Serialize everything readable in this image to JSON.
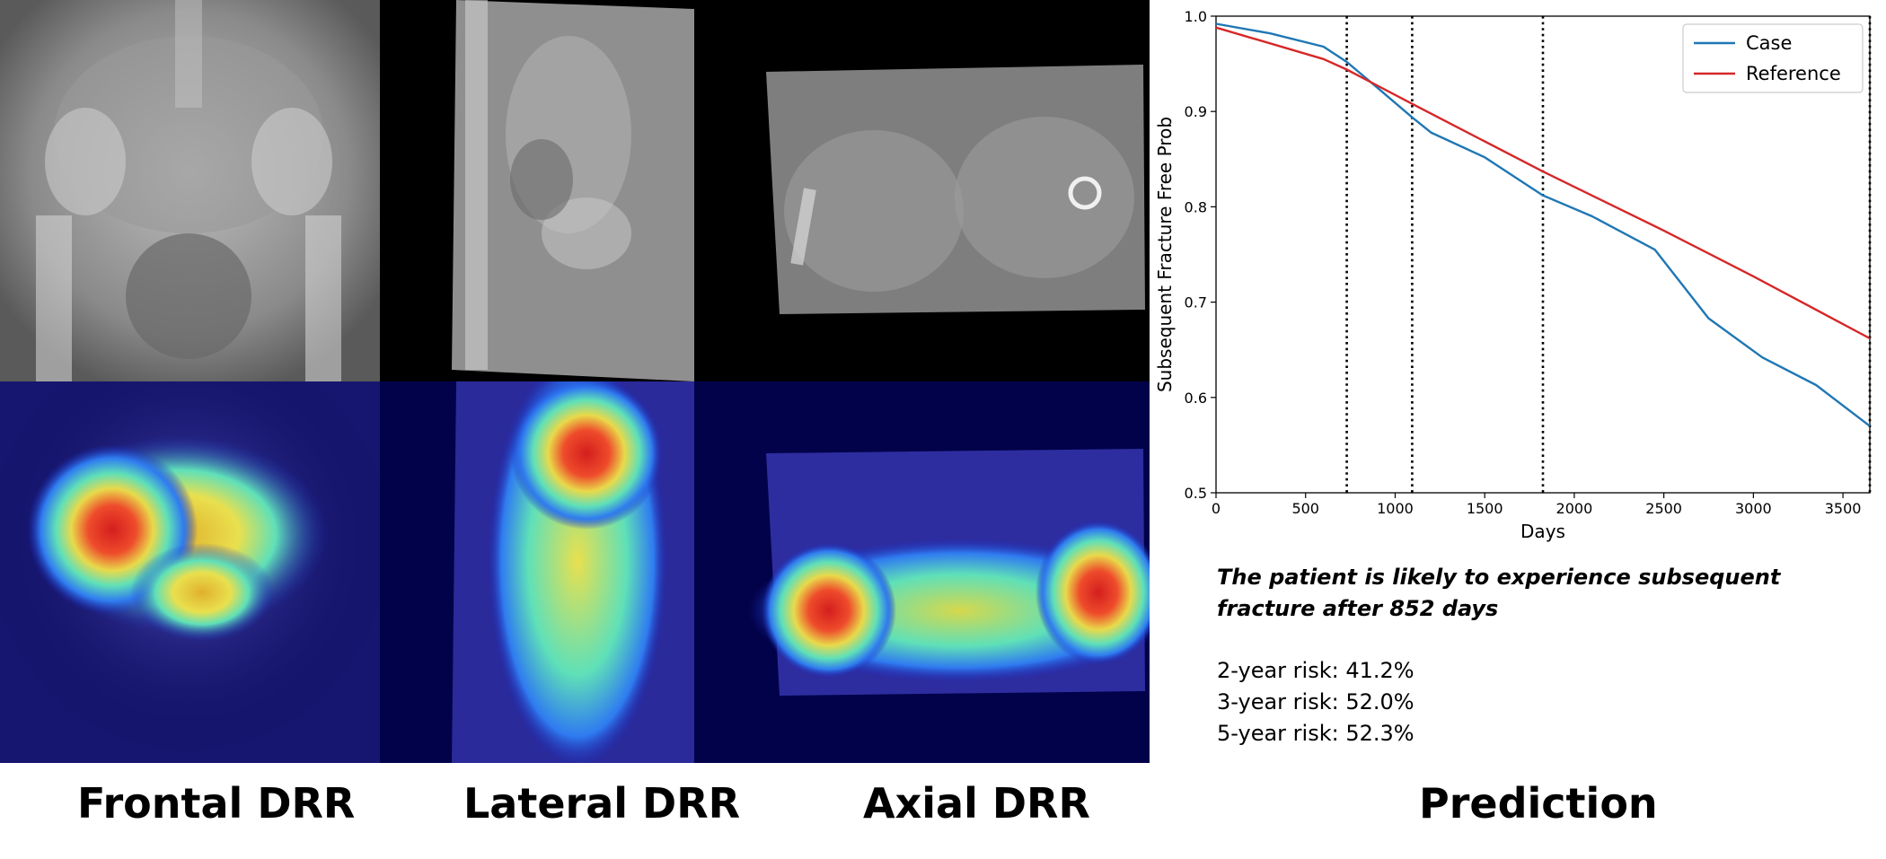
{
  "captions": {
    "frontal": "Frontal DRR",
    "lateral": "Lateral DRR",
    "axial": "Axial DRR",
    "prediction": "Prediction"
  },
  "prediction": {
    "statement": "The patient is likely to experience subsequent fracture after 852 days",
    "risks": [
      "2-year risk: 41.2%",
      "3-year risk: 52.0%",
      "5-year risk: 52.3%"
    ]
  },
  "colors": {
    "case": "#1f77b4",
    "reference": "#d62728",
    "heatmap_background": "#02024a"
  },
  "chart_data": {
    "type": "line",
    "title": "",
    "xlabel": "Days",
    "ylabel": "Subsequent Fracture Free Prob",
    "xlim": [
      0,
      3650
    ],
    "ylim": [
      0.5,
      1.0
    ],
    "xticks": [
      0,
      500,
      1000,
      1500,
      2000,
      2500,
      3000,
      3500
    ],
    "yticks": [
      0.5,
      0.6,
      0.7,
      0.8,
      0.9,
      1.0
    ],
    "legend_position": "top-right",
    "vertical_lines": [
      730,
      1095,
      1825,
      3650
    ],
    "series": [
      {
        "name": "Case",
        "x": [
          0,
          300,
          600,
          730,
          900,
          1100,
          1200,
          1500,
          1825,
          2100,
          2450,
          2750,
          3050,
          3350,
          3650
        ],
        "y": [
          0.992,
          0.982,
          0.968,
          0.952,
          0.925,
          0.893,
          0.878,
          0.852,
          0.812,
          0.79,
          0.755,
          0.683,
          0.642,
          0.613,
          0.57
        ]
      },
      {
        "name": "Reference",
        "x": [
          0,
          600,
          730,
          1095,
          1825,
          2500,
          3000,
          3650
        ],
        "y": [
          0.988,
          0.955,
          0.944,
          0.908,
          0.837,
          0.775,
          0.727,
          0.662
        ]
      }
    ]
  }
}
